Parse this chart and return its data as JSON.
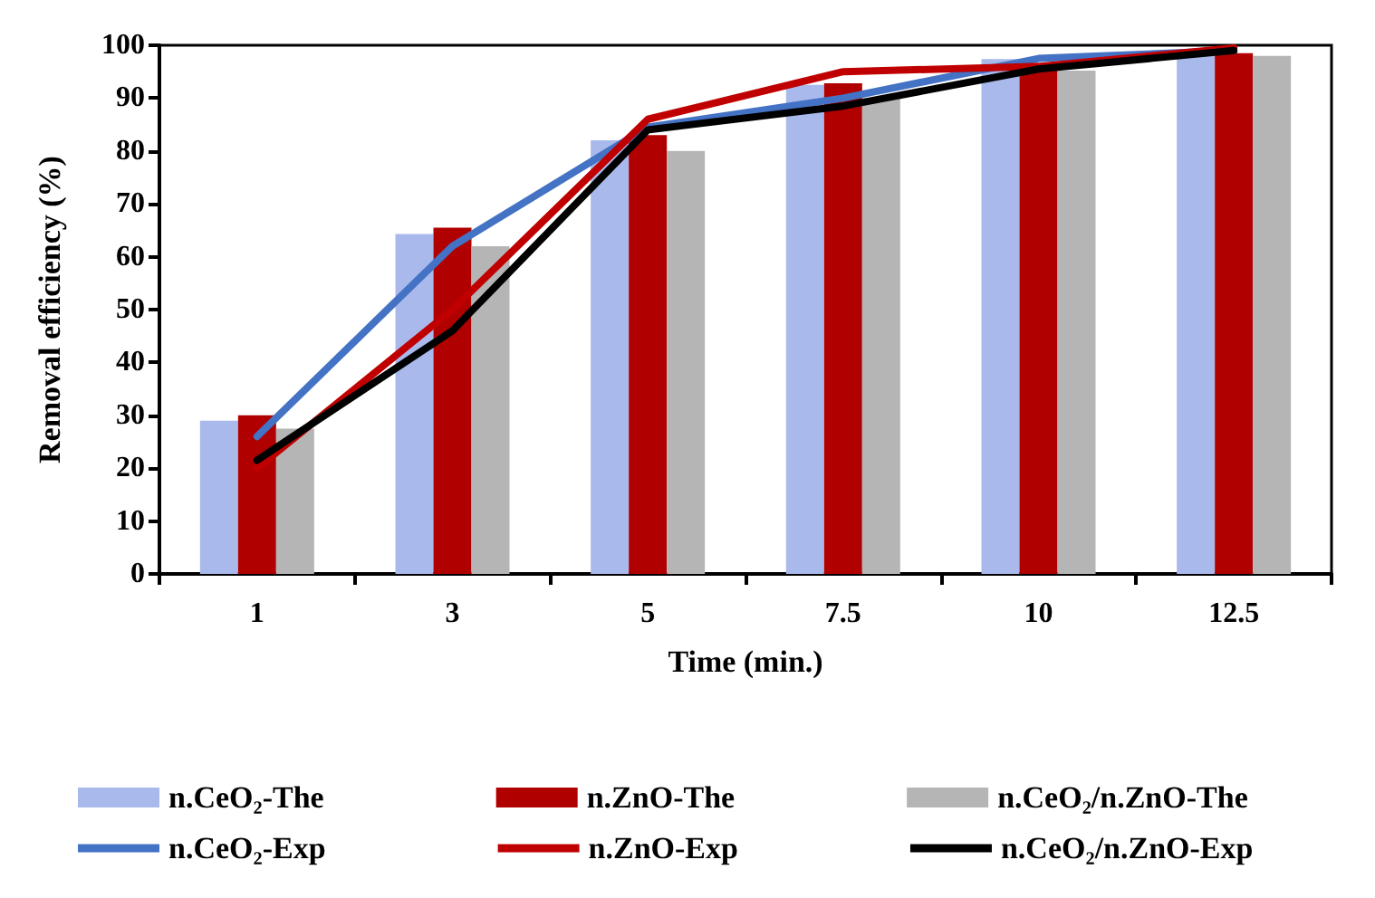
{
  "chart_data": {
    "type": "bar",
    "xlabel": "Time (min.)",
    "ylabel": "Removal efficiency (%)",
    "categories": [
      "1",
      "3",
      "5",
      "7.5",
      "10",
      "12.5"
    ],
    "ylim": [
      0,
      100
    ],
    "yticks": [
      0,
      10,
      20,
      30,
      40,
      50,
      60,
      70,
      80,
      90,
      100
    ],
    "grid": false,
    "legend": "bottom",
    "series": [
      {
        "name": "n.CeO₂-The",
        "color": "#a9b9ec",
        "values": [
          29,
          64.3,
          82,
          92.5,
          97.4,
          98.8
        ]
      },
      {
        "name": "n.ZnO-The",
        "color": "#b00000",
        "values": [
          30,
          65.5,
          83,
          92.8,
          95.8,
          98.5
        ]
      },
      {
        "name": "n.CeO₂/n.ZnO-The",
        "color": "#b5b5b5",
        "values": [
          27.5,
          62,
          80,
          90,
          95.2,
          98
        ]
      },
      {
        "name": "n.CeO₂-Exp",
        "type": "line",
        "color": "#4472c4",
        "values": [
          26,
          62,
          84.5,
          90,
          97.5,
          99
        ]
      },
      {
        "name": "n.ZnO-Exp",
        "type": "line",
        "color": "#c00000",
        "values": [
          20,
          50,
          86,
          95,
          96,
          99.5
        ]
      },
      {
        "name": "n.CeO₂/n.ZnO-Exp",
        "type": "line",
        "color": "#000000",
        "values": [
          21.5,
          46,
          84,
          88.5,
          95.5,
          99
        ]
      }
    ]
  }
}
